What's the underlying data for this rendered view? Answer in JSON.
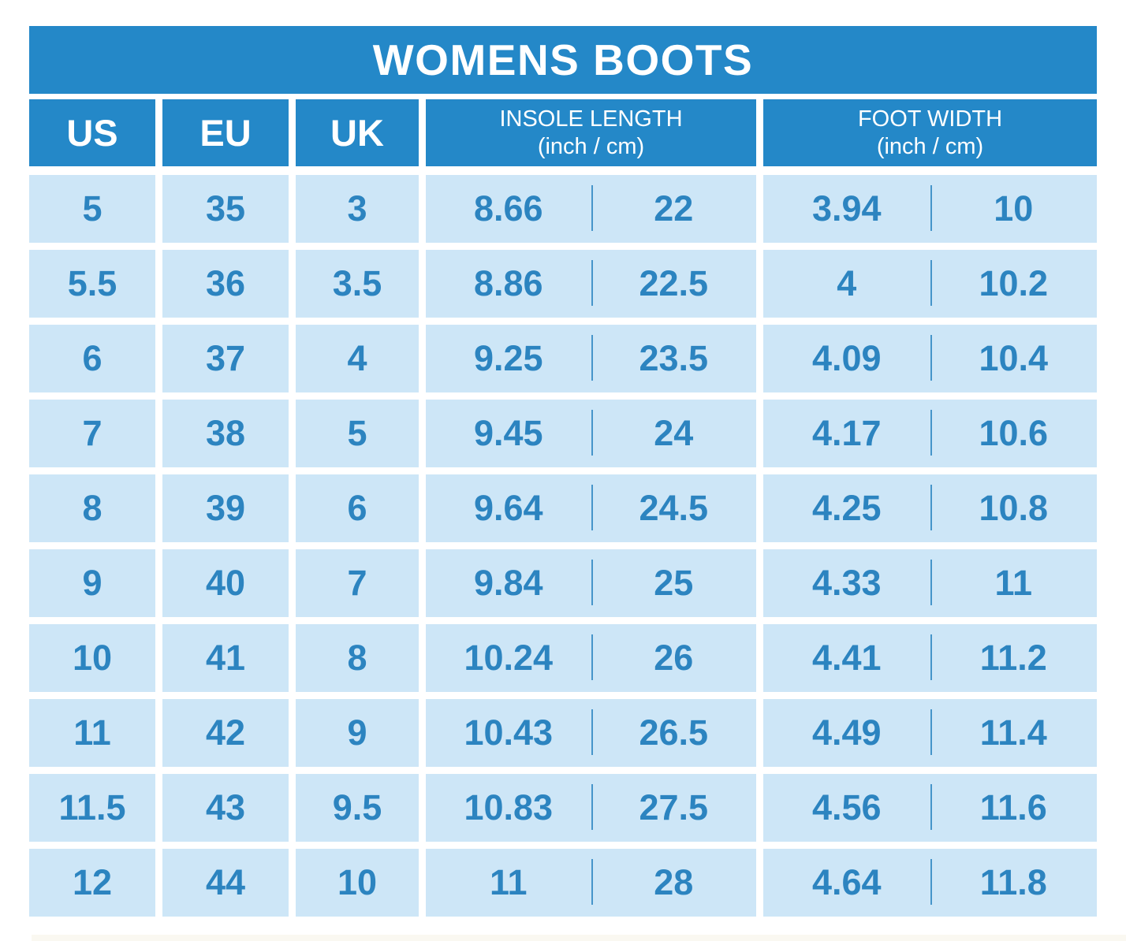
{
  "title": "WOMENS BOOTS",
  "header": {
    "us": "US",
    "eu": "EU",
    "uk": "UK",
    "insole": {
      "label": "INSOLE LENGTH",
      "unit": "(inch / cm)"
    },
    "foot": {
      "label": "FOOT WIDTH",
      "unit": "(inch / cm)"
    }
  },
  "rows": [
    {
      "us": "5",
      "eu": "35",
      "uk": "3",
      "insole_inch": "8.66",
      "insole_cm": "22",
      "foot_inch": "3.94",
      "foot_cm": "10"
    },
    {
      "us": "5.5",
      "eu": "36",
      "uk": "3.5",
      "insole_inch": "8.86",
      "insole_cm": "22.5",
      "foot_inch": "4",
      "foot_cm": "10.2"
    },
    {
      "us": "6",
      "eu": "37",
      "uk": "4",
      "insole_inch": "9.25",
      "insole_cm": "23.5",
      "foot_inch": "4.09",
      "foot_cm": "10.4"
    },
    {
      "us": "7",
      "eu": "38",
      "uk": "5",
      "insole_inch": "9.45",
      "insole_cm": "24",
      "foot_inch": "4.17",
      "foot_cm": "10.6"
    },
    {
      "us": "8",
      "eu": "39",
      "uk": "6",
      "insole_inch": "9.64",
      "insole_cm": "24.5",
      "foot_inch": "4.25",
      "foot_cm": "10.8"
    },
    {
      "us": "9",
      "eu": "40",
      "uk": "7",
      "insole_inch": "9.84",
      "insole_cm": "25",
      "foot_inch": "4.33",
      "foot_cm": "11"
    },
    {
      "us": "10",
      "eu": "41",
      "uk": "8",
      "insole_inch": "10.24",
      "insole_cm": "26",
      "foot_inch": "4.41",
      "foot_cm": "11.2"
    },
    {
      "us": "11",
      "eu": "42",
      "uk": "9",
      "insole_inch": "10.43",
      "insole_cm": "26.5",
      "foot_inch": "4.49",
      "foot_cm": "11.4"
    },
    {
      "us": "11.5",
      "eu": "43",
      "uk": "9.5",
      "insole_inch": "10.83",
      "insole_cm": "27.5",
      "foot_inch": "4.56",
      "foot_cm": "11.6"
    },
    {
      "us": "12",
      "eu": "44",
      "uk": "10",
      "insole_inch": "11",
      "insole_cm": "28",
      "foot_inch": "4.64",
      "foot_cm": "11.8"
    }
  ],
  "colors": {
    "header_blue": "#2488c8",
    "cell_blue": "#cde6f7",
    "text_blue": "#2c84c0",
    "line_blue": "#4695ca",
    "title_text": "#ffffff"
  },
  "chart_data": {
    "type": "table",
    "title": "WOMENS BOOTS",
    "columns": [
      "US",
      "EU",
      "UK",
      "INSOLE LENGTH inch",
      "INSOLE LENGTH cm",
      "FOOT WIDTH inch",
      "FOOT WIDTH cm"
    ],
    "rows": [
      [
        "5",
        "35",
        "3",
        "8.66",
        "22",
        "3.94",
        "10"
      ],
      [
        "5.5",
        "36",
        "3.5",
        "8.86",
        "22.5",
        "4",
        "10.2"
      ],
      [
        "6",
        "37",
        "4",
        "9.25",
        "23.5",
        "4.09",
        "10.4"
      ],
      [
        "7",
        "38",
        "5",
        "9.45",
        "24",
        "4.17",
        "10.6"
      ],
      [
        "8",
        "39",
        "6",
        "9.64",
        "24.5",
        "4.25",
        "10.8"
      ],
      [
        "9",
        "40",
        "7",
        "9.84",
        "25",
        "4.33",
        "11"
      ],
      [
        "10",
        "41",
        "8",
        "10.24",
        "26",
        "4.41",
        "11.2"
      ],
      [
        "11",
        "42",
        "9",
        "10.43",
        "26.5",
        "4.49",
        "11.4"
      ],
      [
        "11.5",
        "43",
        "9.5",
        "10.83",
        "27.5",
        "4.56",
        "11.6"
      ],
      [
        "12",
        "44",
        "10",
        "11",
        "28",
        "4.64",
        "11.8"
      ]
    ]
  }
}
